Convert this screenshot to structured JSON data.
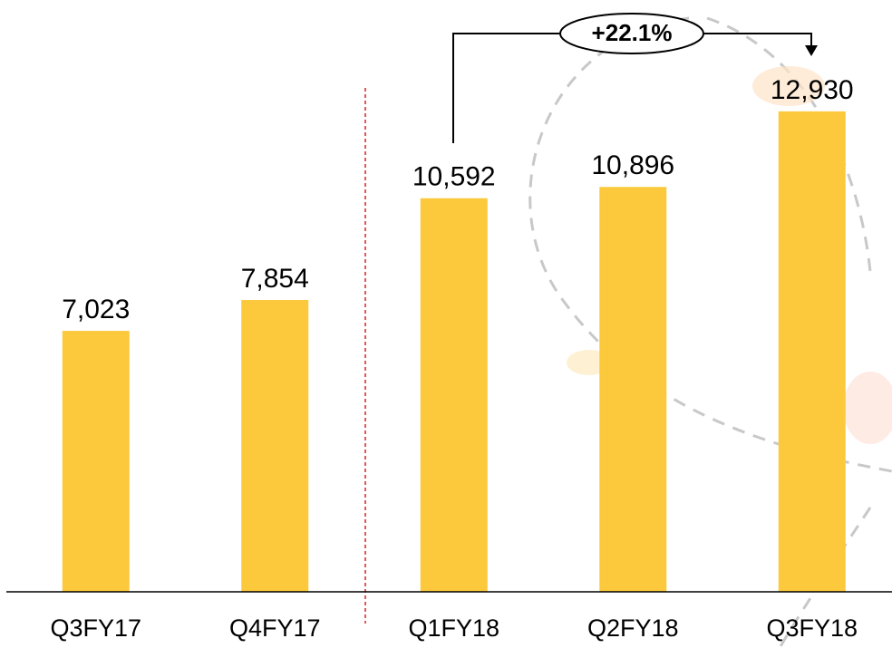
{
  "chart_data": {
    "type": "bar",
    "categories": [
      "Q3FY17",
      "Q4FY17",
      "Q1FY18",
      "Q2FY18",
      "Q3FY18"
    ],
    "values": [
      7023,
      7854,
      10592,
      10896,
      12930
    ],
    "value_labels": [
      "7,023",
      "7,854",
      "10,592",
      "10,896",
      "12,930"
    ],
    "color": "#fcc93c",
    "ylim": [
      0,
      16000
    ],
    "annotation": "+22.1%"
  }
}
